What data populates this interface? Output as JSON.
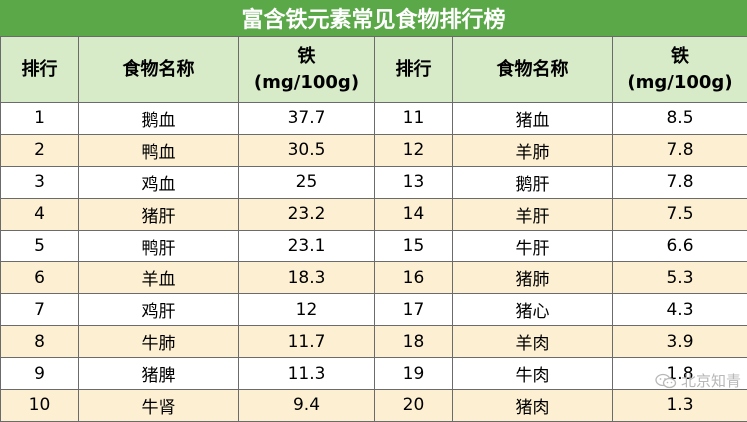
{
  "title": "富含铁元素常见食物排行榜",
  "headers": {
    "rank": "排行",
    "name": "食物名称",
    "iron_line1": "铁",
    "iron_line2": "(mg/100g)"
  },
  "rows": [
    {
      "l_rank": "1",
      "l_name": "鹅血",
      "l_iron": "37.7",
      "r_rank": "11",
      "r_name": "猪血",
      "r_iron": "8.5"
    },
    {
      "l_rank": "2",
      "l_name": "鸭血",
      "l_iron": "30.5",
      "r_rank": "12",
      "r_name": "羊肺",
      "r_iron": "7.8"
    },
    {
      "l_rank": "3",
      "l_name": "鸡血",
      "l_iron": "25",
      "r_rank": "13",
      "r_name": "鹅肝",
      "r_iron": "7.8"
    },
    {
      "l_rank": "4",
      "l_name": "猪肝",
      "l_iron": "23.2",
      "r_rank": "14",
      "r_name": "羊肝",
      "r_iron": "7.5"
    },
    {
      "l_rank": "5",
      "l_name": "鸭肝",
      "l_iron": "23.1",
      "r_rank": "15",
      "r_name": "牛肝",
      "r_iron": "6.6"
    },
    {
      "l_rank": "6",
      "l_name": "羊血",
      "l_iron": "18.3",
      "r_rank": "16",
      "r_name": "猪肺",
      "r_iron": "5.3"
    },
    {
      "l_rank": "7",
      "l_name": "鸡肝",
      "l_iron": "12",
      "r_rank": "17",
      "r_name": "猪心",
      "r_iron": "4.3"
    },
    {
      "l_rank": "8",
      "l_name": "牛肺",
      "l_iron": "11.7",
      "r_rank": "18",
      "r_name": "羊肉",
      "r_iron": "3.9"
    },
    {
      "l_rank": "9",
      "l_name": "猪脾",
      "l_iron": "11.3",
      "r_rank": "19",
      "r_name": "牛肉",
      "r_iron": "1.8"
    },
    {
      "l_rank": "10",
      "l_name": "牛肾",
      "l_iron": "9.4",
      "r_rank": "20",
      "r_name": "猪肉",
      "r_iron": "1.3"
    }
  ],
  "watermark": "北京知青",
  "colors": {
    "title_bg": "#5aa848",
    "header_bg": "#d7ebc8",
    "stripe": "#fcefd2"
  }
}
